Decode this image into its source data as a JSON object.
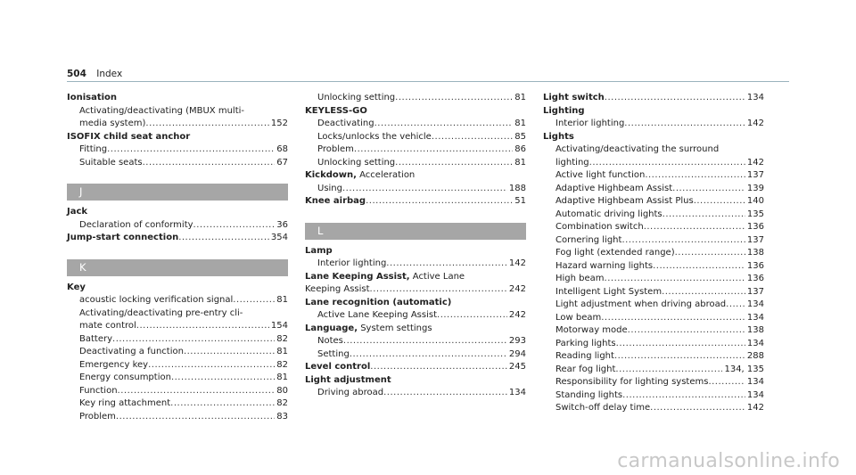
{
  "header": {
    "page_number": "504",
    "title": "Index"
  },
  "columns": [
    [
      {
        "type": "entry",
        "lines": [
          {
            "heading": "Ionisation"
          },
          {
            "sub": true,
            "text": "Activating/deactivating (MBUX multi-"
          },
          {
            "sub": true,
            "text": "media system)",
            "page": "152"
          }
        ]
      },
      {
        "type": "entry",
        "lines": [
          {
            "heading": "ISOFIX child seat anchor"
          },
          {
            "sub": true,
            "text": "Fitting",
            "page": "68"
          },
          {
            "sub": true,
            "text": "Suitable seats",
            "page": "67"
          }
        ]
      },
      {
        "type": "section",
        "label": "J"
      },
      {
        "type": "entry",
        "lines": [
          {
            "heading": "Jack"
          },
          {
            "sub": true,
            "text": "Declaration of conformity",
            "page": "36"
          }
        ]
      },
      {
        "type": "entry",
        "lines": [
          {
            "heading": "Jump-start connection",
            "page": "354"
          }
        ]
      },
      {
        "type": "section",
        "label": "K"
      },
      {
        "type": "entry",
        "lines": [
          {
            "heading": "Key"
          },
          {
            "sub": true,
            "text": "acoustic locking verification signal",
            "page": "81"
          },
          {
            "sub": true,
            "text": "Activating/deactivating pre-entry cli-"
          },
          {
            "sub": true,
            "text": "mate control",
            "page": "154"
          },
          {
            "sub": true,
            "text": "Battery",
            "page": "82"
          },
          {
            "sub": true,
            "text": "Deactivating a function",
            "page": "81"
          },
          {
            "sub": true,
            "text": "Emergency key",
            "page": "82"
          },
          {
            "sub": true,
            "text": "Energy consumption",
            "page": "81"
          },
          {
            "sub": true,
            "text": "Function",
            "page": "80"
          },
          {
            "sub": true,
            "text": "Key ring attachment",
            "page": "82"
          },
          {
            "sub": true,
            "text": "Problem",
            "page": "83"
          }
        ]
      }
    ],
    [
      {
        "type": "entry",
        "lines": [
          {
            "sub": true,
            "text": "Unlocking setting",
            "page": "81"
          }
        ]
      },
      {
        "type": "entry",
        "lines": [
          {
            "heading": "KEYLESS-GO"
          },
          {
            "sub": true,
            "text": "Deactivating",
            "page": "81"
          },
          {
            "sub": true,
            "text": "Locks/unlocks the vehicle",
            "page": "85"
          },
          {
            "sub": true,
            "text": "Problem",
            "page": "86"
          },
          {
            "sub": true,
            "text": "Unlocking setting",
            "page": "81"
          }
        ]
      },
      {
        "type": "entry",
        "lines": [
          {
            "heading": "Kickdown,",
            "suffix": " Acceleration"
          },
          {
            "sub": true,
            "text": "Using",
            "page": "188"
          }
        ]
      },
      {
        "type": "entry",
        "lines": [
          {
            "heading": "Knee airbag",
            "page": "51"
          }
        ]
      },
      {
        "type": "section",
        "label": "L"
      },
      {
        "type": "entry",
        "lines": [
          {
            "heading": "Lamp"
          },
          {
            "sub": true,
            "text": "Interior lighting",
            "page": "142"
          }
        ]
      },
      {
        "type": "entry",
        "lines": [
          {
            "heading": "Lane Keeping Assist,",
            "suffix": " Active Lane"
          },
          {
            "text": "Keeping Assist",
            "page": "242"
          }
        ]
      },
      {
        "type": "entry",
        "lines": [
          {
            "heading": "Lane recognition (automatic)"
          },
          {
            "sub": true,
            "text": "Active Lane Keeping Assist",
            "page": "242"
          }
        ]
      },
      {
        "type": "entry",
        "lines": [
          {
            "heading": "Language,",
            "suffix": " System settings"
          },
          {
            "sub": true,
            "text": "Notes",
            "page": "293"
          },
          {
            "sub": true,
            "text": "Setting",
            "page": "294"
          }
        ]
      },
      {
        "type": "entry",
        "lines": [
          {
            "heading": "Level control",
            "page": "245"
          }
        ]
      },
      {
        "type": "entry",
        "lines": [
          {
            "heading": "Light adjustment"
          },
          {
            "sub": true,
            "text": "Driving abroad",
            "page": "134"
          }
        ]
      }
    ],
    [
      {
        "type": "entry",
        "lines": [
          {
            "heading": "Light switch",
            "page": "134"
          }
        ]
      },
      {
        "type": "entry",
        "lines": [
          {
            "heading": "Lighting"
          },
          {
            "sub": true,
            "text": "Interior lighting",
            "page": "142"
          }
        ]
      },
      {
        "type": "entry",
        "lines": [
          {
            "heading": "Lights"
          },
          {
            "sub": true,
            "text": "Activating/deactivating the surround"
          },
          {
            "sub": true,
            "text": "lighting",
            "page": "142"
          },
          {
            "sub": true,
            "text": "Active light function",
            "page": "137"
          },
          {
            "sub": true,
            "text": "Adaptive Highbeam Assist",
            "page": "139"
          },
          {
            "sub": true,
            "text": "Adaptive Highbeam Assist Plus",
            "page": "140"
          },
          {
            "sub": true,
            "text": "Automatic driving lights",
            "page": "135"
          },
          {
            "sub": true,
            "text": "Combination switch",
            "page": "136"
          },
          {
            "sub": true,
            "text": "Cornering light",
            "page": "137"
          },
          {
            "sub": true,
            "text": "Fog light (extended range)",
            "page": "138"
          },
          {
            "sub": true,
            "text": "Hazard warning lights",
            "page": "136"
          },
          {
            "sub": true,
            "text": "High beam",
            "page": "136"
          },
          {
            "sub": true,
            "text": "Intelligent Light System",
            "page": "137"
          },
          {
            "sub": true,
            "text": "Light adjustment when driving abroad",
            "page": "134"
          },
          {
            "sub": true,
            "text": "Low beam",
            "page": "134"
          },
          {
            "sub": true,
            "text": "Motorway mode",
            "page": "138"
          },
          {
            "sub": true,
            "text": "Parking lights",
            "page": "134"
          },
          {
            "sub": true,
            "text": "Reading light",
            "page": "288"
          },
          {
            "sub": true,
            "text": "Rear fog light",
            "page": "134, 135"
          },
          {
            "sub": true,
            "text": "Responsibility for lighting systems",
            "page": "134"
          },
          {
            "sub": true,
            "text": "Standing lights",
            "page": "134"
          },
          {
            "sub": true,
            "text": "Switch-off delay time",
            "page": "142"
          }
        ]
      }
    ]
  ],
  "watermark": "carmanualsonline.info"
}
